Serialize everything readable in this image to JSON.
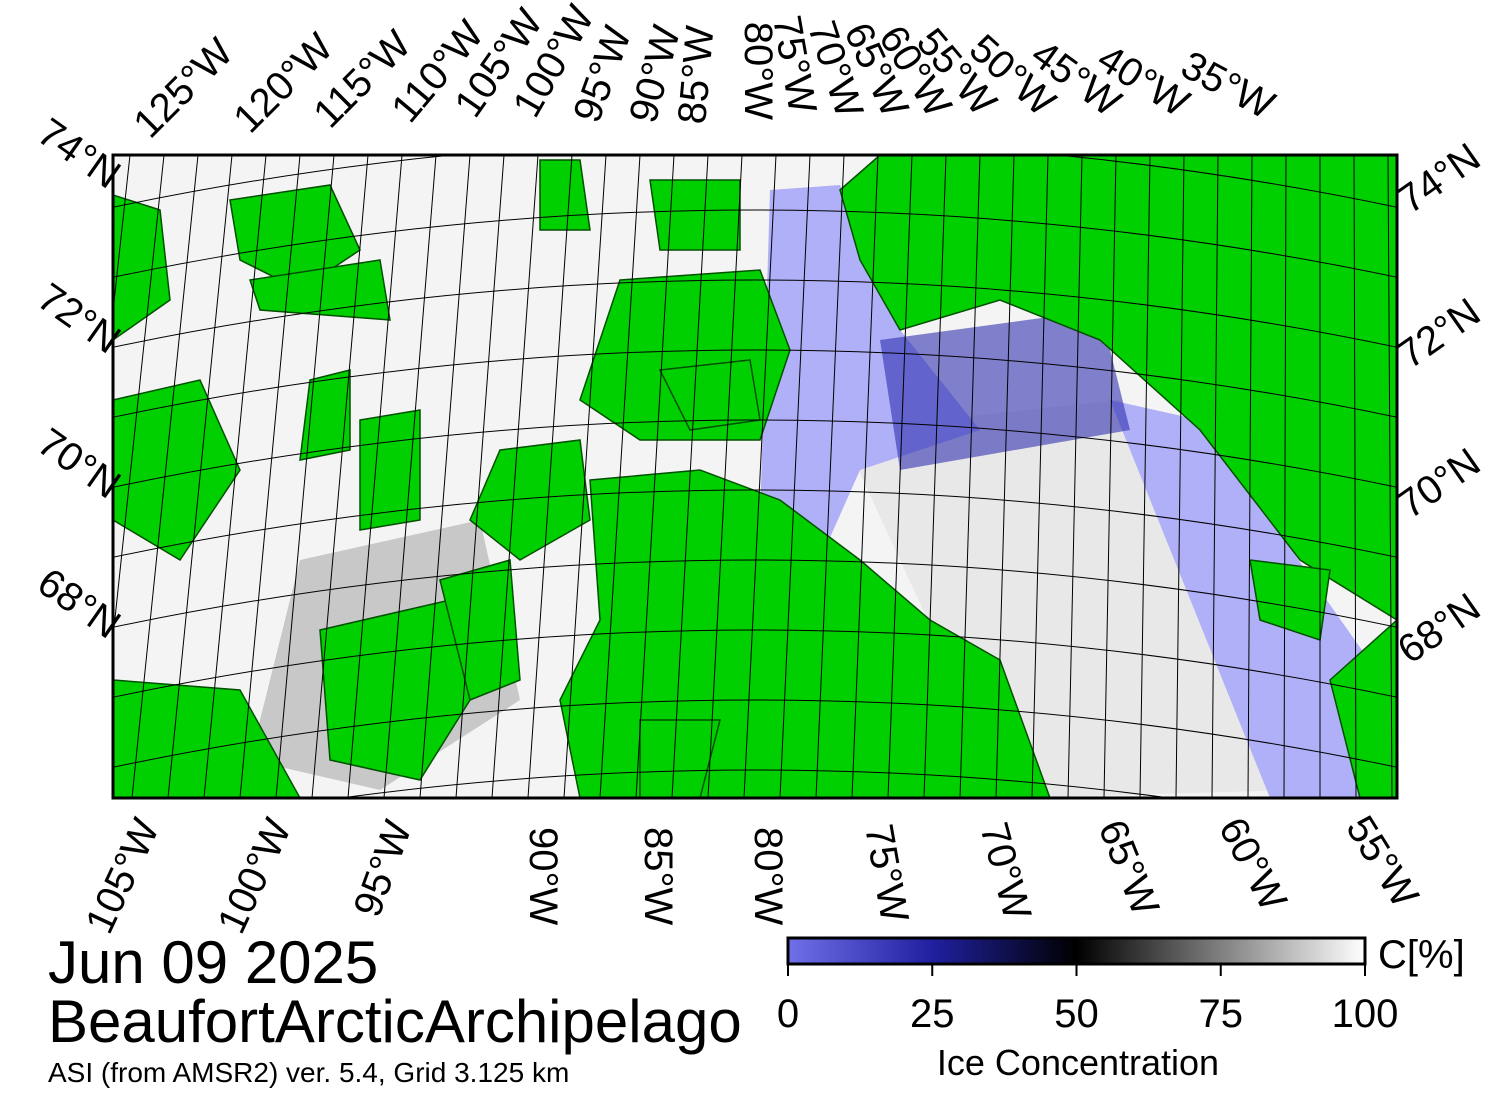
{
  "map": {
    "date": "Jun 09 2025",
    "region": "BeaufortArcticArchipelago",
    "source": "ASI (from AMSR2) ver. 5.4,  Grid 3.125 km",
    "top_lon_labels": [
      "125°W",
      "120°W",
      "115°W",
      "110°W",
      "105°W",
      "100°W",
      "95°W",
      "90°W",
      "85°W",
      "80°W",
      "75°W",
      "70°W",
      "65°W",
      "60°W",
      "55°W",
      "50°W",
      "45°W",
      "40°W",
      "35°W"
    ],
    "bottom_lon_labels": [
      "105°W",
      "100°W",
      "95°W",
      "90°W",
      "85°W",
      "80°W",
      "75°W",
      "70°W",
      "65°W",
      "60°W",
      "55°W"
    ],
    "left_lat_labels": [
      "74°N",
      "72°N",
      "70°N",
      "68°N"
    ],
    "right_lat_labels": [
      "74°N",
      "72°N",
      "70°N",
      "68°N"
    ]
  },
  "colorbar": {
    "unit": "C[%]",
    "title": "Ice Concentration",
    "range": [
      0,
      100
    ],
    "ticks": [
      0,
      25,
      50,
      75,
      100
    ]
  }
}
